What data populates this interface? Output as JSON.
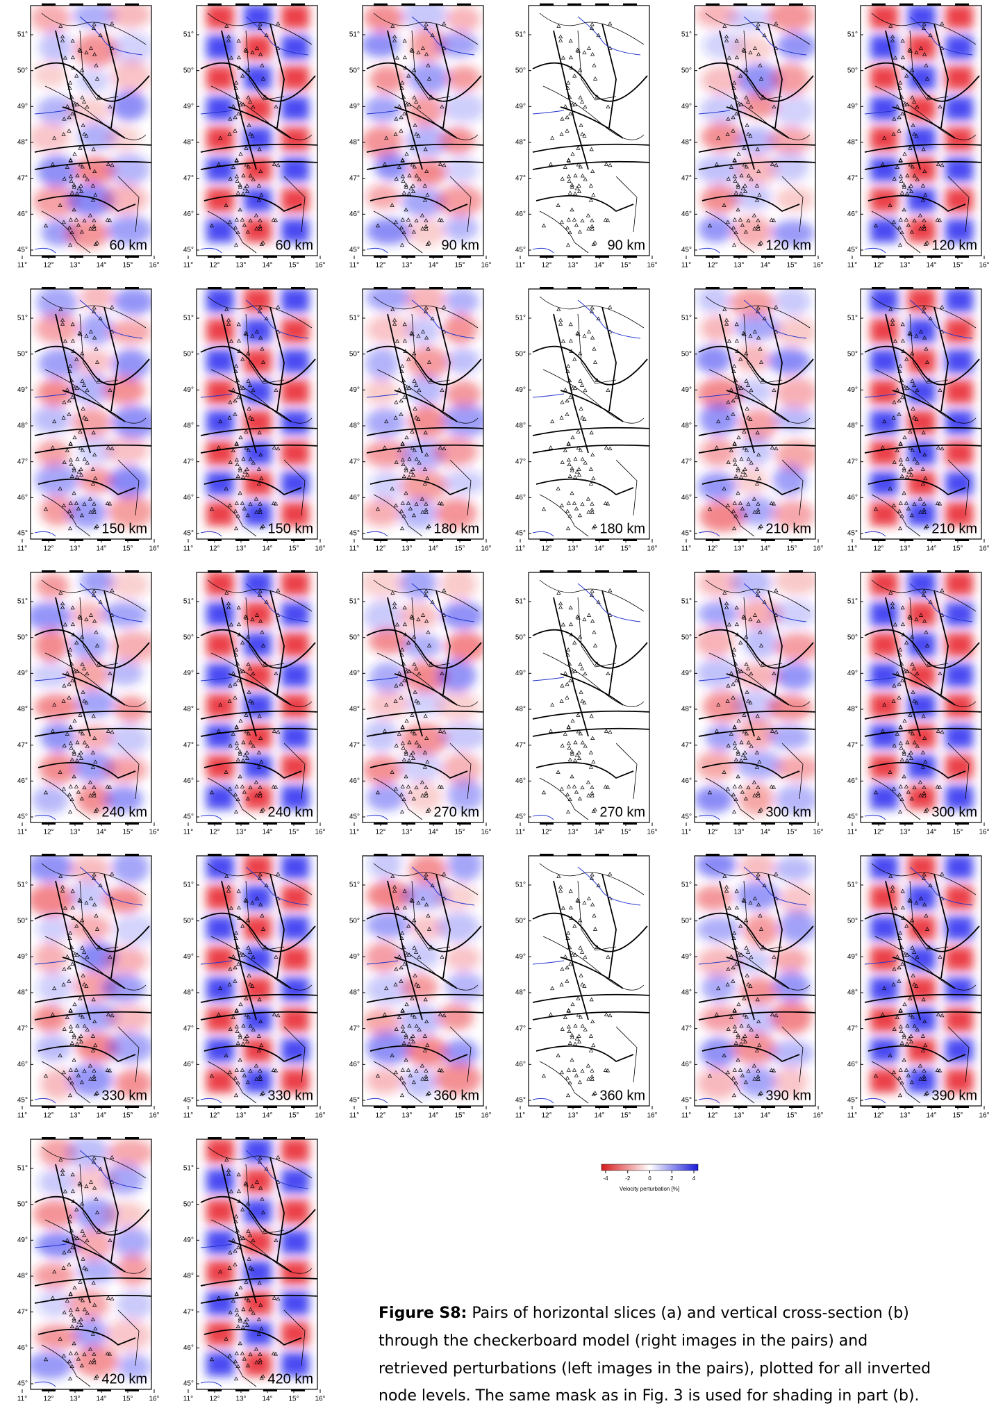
{
  "panels": [
    {
      "depth_label": "60 km"
    },
    {
      "depth_label": "60 km"
    },
    {
      "depth_label": "90 km"
    },
    {
      "depth_label": "90 km"
    },
    {
      "depth_label": "120 km"
    },
    {
      "depth_label": "120 km"
    },
    {
      "depth_label": "150 km"
    },
    {
      "depth_label": "150 km"
    },
    {
      "depth_label": "180 km"
    },
    {
      "depth_label": "180 km"
    },
    {
      "depth_label": "210 km"
    },
    {
      "depth_label": "210 km"
    },
    {
      "depth_label": "240 km"
    },
    {
      "depth_label": "240 km"
    },
    {
      "depth_label": "270 km"
    },
    {
      "depth_label": "270 km"
    },
    {
      "depth_label": "300 km"
    },
    {
      "depth_label": "300 km"
    },
    {
      "depth_label": "330 km"
    },
    {
      "depth_label": "330 km"
    },
    {
      "depth_label": "360 km"
    },
    {
      "depth_label": "360 km"
    },
    {
      "depth_label": "390 km"
    },
    {
      "depth_label": "390 km"
    },
    {
      "depth_label": "420 km"
    },
    {
      "depth_label": "420 km"
    }
  ],
  "lat_ticks": [
    {
      "value": 51,
      "label": "51°"
    },
    {
      "value": 50,
      "label": "50°"
    },
    {
      "value": 49,
      "label": "49°"
    },
    {
      "value": 48,
      "label": "48°"
    },
    {
      "value": 47,
      "label": "47°"
    },
    {
      "value": 46,
      "label": "46°"
    },
    {
      "value": 45,
      "label": "45°"
    }
  ],
  "lon_ticks": [
    {
      "value": 11,
      "label": "11°"
    },
    {
      "value": 12,
      "label": "12°"
    },
    {
      "value": 13,
      "label": "13°"
    },
    {
      "value": 14,
      "label": "14°"
    },
    {
      "value": 15,
      "label": "15°"
    },
    {
      "value": 16,
      "label": "16°"
    }
  ],
  "colorbar": {
    "ticks": [
      -4,
      -2,
      0,
      2,
      4
    ],
    "label": "Velocity perturbation [%]"
  },
  "caption": {
    "label": "Figure S8:",
    "lines": [
      " Pairs of horizontal slices (a) and vertical cross-section (b)",
      "through the checkerboard model (right images in the pairs) and",
      "retrieved perturbations (left images in the pairs), plotted for all inverted",
      "node levels. The same mask as in Fig. 3 is used for shading in part (b)."
    ]
  }
}
